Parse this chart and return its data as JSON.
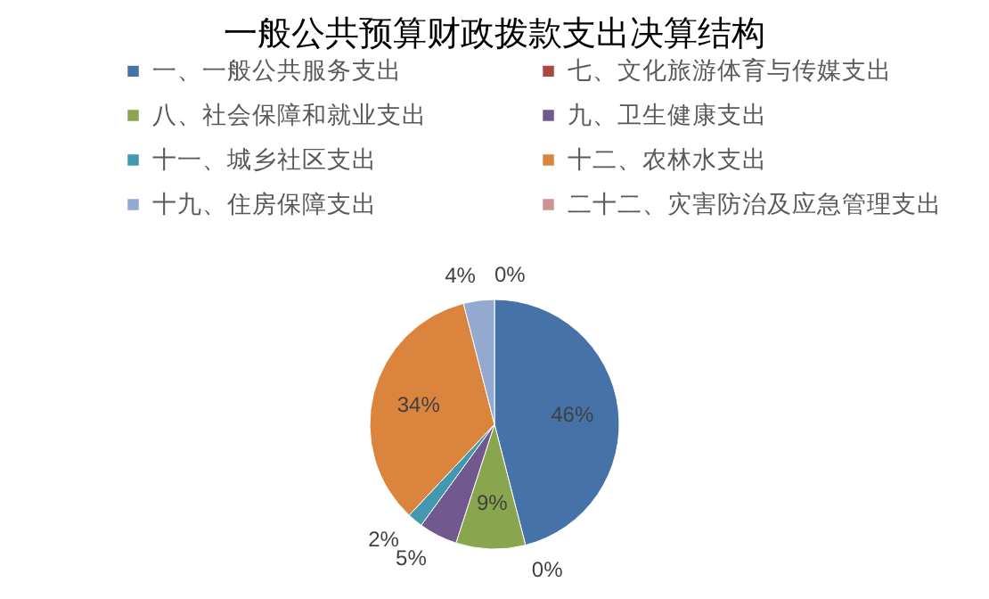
{
  "chart_data": {
    "type": "pie",
    "title": "一般公共预算财政拨款支出决算结构",
    "categories": [
      "一、一般公共服务支出",
      "七、文化旅游体育与传媒支出",
      "八、社会保障和就业支出",
      "九、卫生健康支出",
      "十一、城乡社区支出",
      "十二、农林水支出",
      "十九、住房保障支出",
      "二十二、灾害防治及应急管理支出"
    ],
    "values": [
      46,
      0,
      9,
      5,
      2,
      34,
      4,
      0
    ],
    "colors": [
      "#4572a7",
      "#aa4643",
      "#89a54e",
      "#71588f",
      "#4198af",
      "#db843d",
      "#93a9cf",
      "#d19392"
    ],
    "value_labels": [
      "46%",
      "0%",
      "9%",
      "5%",
      "2%",
      "34%",
      "4%",
      "0%"
    ],
    "legend": "top"
  }
}
